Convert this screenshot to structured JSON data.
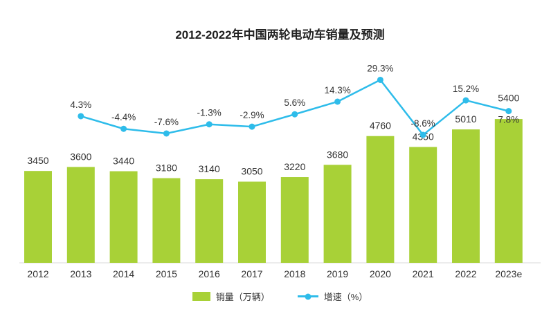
{
  "title": "2012-2022年中国两轮电动车销量及预测",
  "colors": {
    "bar": "#a8d137",
    "line": "#2ebcea",
    "label": "#333333",
    "title": "#222222",
    "axis": "#d9d9d9"
  },
  "legend": {
    "sales_label": "销量（万辆）",
    "growth_label": "增速（%）"
  },
  "chart_data": {
    "type": "bar",
    "title": "2012-2022年中国两轮电动车销量及预测",
    "categories": [
      "2012",
      "2013",
      "2014",
      "2015",
      "2016",
      "2017",
      "2018",
      "2019",
      "2020",
      "2021",
      "2022",
      "2023e"
    ],
    "series": [
      {
        "name": "销量（万辆）",
        "type": "bar",
        "values": [
          3450,
          3600,
          3440,
          3180,
          3140,
          3050,
          3220,
          3680,
          4760,
          4350,
          5010,
          5400
        ]
      },
      {
        "name": "增速（%）",
        "type": "line",
        "values": [
          null,
          4.3,
          -4.4,
          -7.6,
          -1.3,
          -2.9,
          5.6,
          14.3,
          29.3,
          -8.6,
          15.2,
          7.8
        ]
      }
    ],
    "value_labels_shown": true,
    "growth_labels_suffix": "%",
    "xlabel": "",
    "ylabel": "",
    "y_axis_visible": false,
    "grid": false,
    "legend_position": "bottom"
  }
}
